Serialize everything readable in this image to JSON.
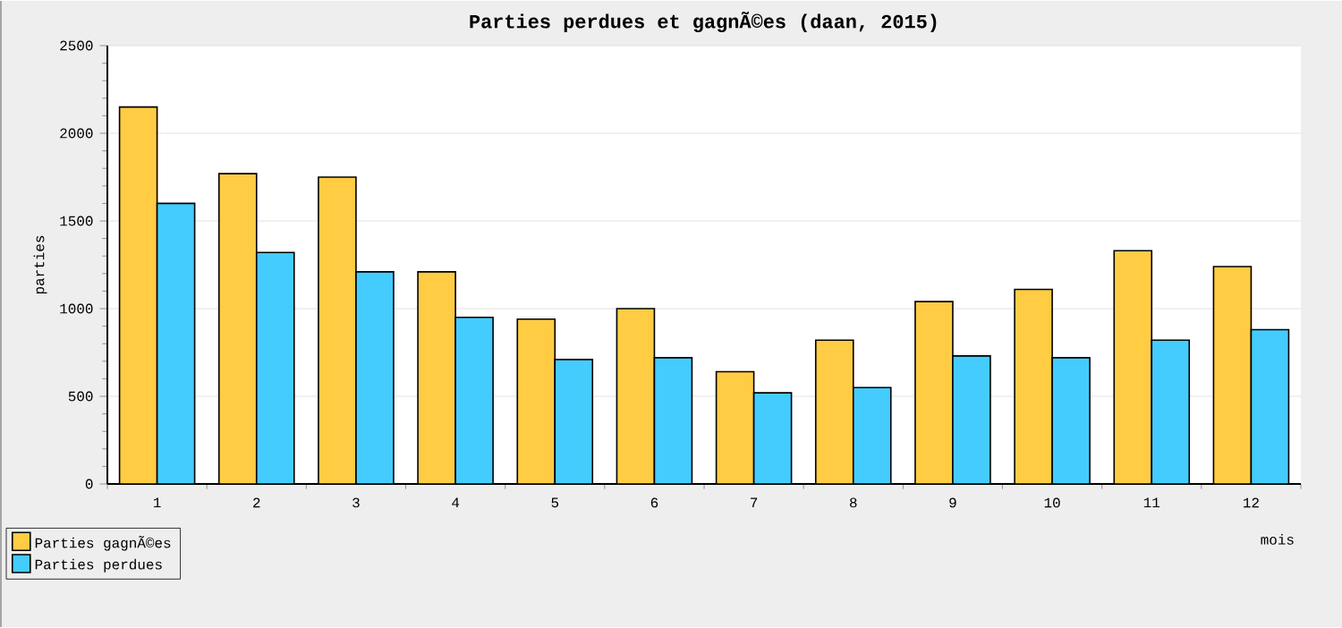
{
  "chart_data": {
    "type": "bar",
    "title": "Parties perdues et gagnÃ©es (daan, 2015)",
    "xlabel": "mois",
    "ylabel": "parties",
    "categories": [
      "1",
      "2",
      "3",
      "4",
      "5",
      "6",
      "7",
      "8",
      "9",
      "10",
      "11",
      "12"
    ],
    "series": [
      {
        "name": "Parties gagnÃ©es",
        "color": "#ffcc44",
        "values": [
          2150,
          1770,
          1750,
          1210,
          940,
          1000,
          640,
          820,
          1040,
          1110,
          1330,
          1240
        ]
      },
      {
        "name": "Parties perdues",
        "color": "#44ccff",
        "values": [
          1600,
          1320,
          1210,
          950,
          710,
          720,
          520,
          550,
          730,
          720,
          820,
          880
        ]
      }
    ],
    "ylim": [
      0,
      2500
    ],
    "yticks": [
      0,
      500,
      1000,
      1500,
      2000,
      2500
    ],
    "grid": "y",
    "legend": "bottom left"
  }
}
